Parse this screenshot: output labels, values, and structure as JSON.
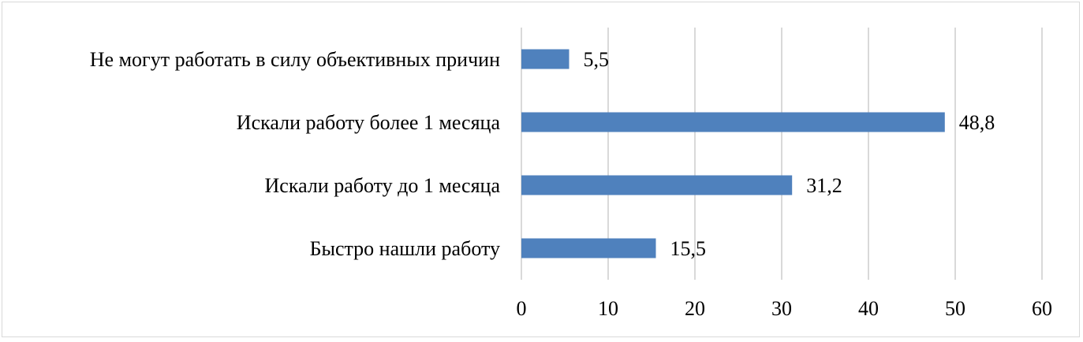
{
  "chart_data": {
    "type": "bar",
    "orientation": "horizontal",
    "title": "",
    "xlabel": "",
    "ylabel": "",
    "categories": [
      "Не могут работать в силу объективных причин",
      "Искали работу более 1 месяца",
      "Искали работу до 1 месяца",
      "Быстро нашли работу"
    ],
    "values": [
      5.5,
      48.8,
      31.2,
      15.5
    ],
    "value_labels": [
      "5,5",
      "48,8",
      "31,2",
      "15,5"
    ],
    "xlim": [
      0,
      60
    ],
    "ticks": [
      0,
      10,
      20,
      30,
      40,
      50,
      60
    ],
    "tick_labels": [
      "0",
      "10",
      "20",
      "30",
      "40",
      "50",
      "60"
    ],
    "grid": true,
    "bar_color": "#4f81bd",
    "grid_color": "#d9d9d9"
  }
}
